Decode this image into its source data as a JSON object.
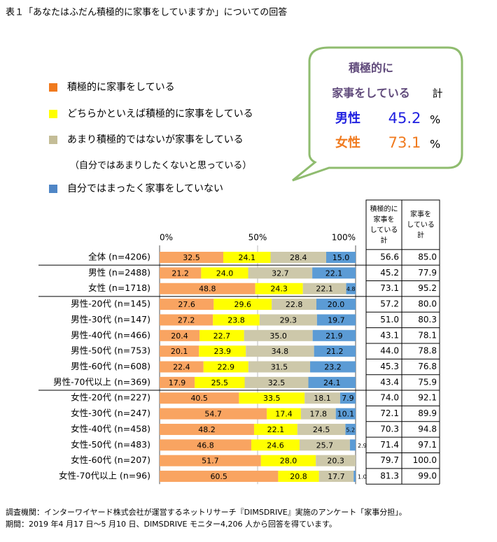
{
  "chart_data": {
    "type": "stacked-bar-horizontal",
    "title": "表１「あなたはふだん積極的に家事をしていますか」についての回答",
    "categories": [
      "全体 (n=4206)",
      "男性 (n=2488)",
      "女性 (n=1718)",
      "男性-20代 (n=145)",
      "男性-30代 (n=147)",
      "男性-40代 (n=466)",
      "男性-50代 (n=753)",
      "男性-60代 (n=608)",
      "男性-70代以上 (n=369)",
      "女性-20代 (n=227)",
      "女性-30代 (n=247)",
      "女性-40代 (n=458)",
      "女性-50代 (n=483)",
      "女性-60代 (n=207)",
      "女性-70代以上 (n=96)"
    ],
    "series": [
      {
        "name": "積極的に家事をしている",
        "color": "#f9a461",
        "legend_color": "#f07a1e",
        "values": [
          32.5,
          21.2,
          48.8,
          27.6,
          27.2,
          20.4,
          20.1,
          22.4,
          17.9,
          40.5,
          54.7,
          48.2,
          46.8,
          51.7,
          60.5
        ]
      },
      {
        "name": "どちらかといえば積極的に家事をしている",
        "color": "#ffff00",
        "legend_color": "#ffff00",
        "values": [
          24.1,
          24.0,
          24.3,
          29.6,
          23.8,
          22.7,
          23.9,
          22.9,
          25.5,
          33.5,
          17.4,
          22.1,
          24.6,
          28.0,
          20.8
        ],
        "value_labels": [
          "24.1",
          "24.0",
          "24.3",
          "29.6",
          "23.8",
          "22.7",
          "23.9",
          "22.9",
          "25.5",
          "33.5",
          "17.4",
          "22.1",
          "24.6",
          "28.0",
          "20.8"
        ]
      },
      {
        "name": "あまり積極的ではないが家事をしている",
        "color": "#cdc8aa",
        "legend_color": "#c4bd97",
        "values": [
          28.4,
          32.7,
          22.1,
          22.8,
          29.3,
          35.0,
          34.8,
          31.5,
          32.5,
          18.1,
          17.8,
          24.5,
          25.7,
          20.3,
          17.7
        ],
        "value_labels": [
          "28.4",
          "32.7",
          "22.1",
          "22.8",
          "29.3",
          "35.0",
          "34.8",
          "31.5",
          "32.5",
          "18.1",
          "17.8",
          "24.5",
          "25.7",
          "20.3",
          "17.7"
        ]
      },
      {
        "name": "自分ではまったく家事をしていない",
        "color": "#5b9bd5",
        "legend_color": "#4f86c6",
        "values": [
          15.0,
          22.1,
          4.8,
          20.0,
          19.7,
          21.9,
          21.2,
          23.2,
          24.1,
          7.9,
          10.1,
          5.2,
          2.9,
          null,
          1.0
        ],
        "value_labels": [
          "15.0",
          "22.1",
          "4.8",
          "20.0",
          "19.7",
          "21.9",
          "21.2",
          "23.2",
          "24.1",
          "7.9",
          "10.1",
          "5.2",
          "2.9",
          null,
          "1.0"
        ]
      }
    ],
    "legend_note": "（自分ではあまりしたくないと思っている）",
    "xlim": [
      0,
      100
    ],
    "xticks": [
      {
        "value": 0,
        "label": "0%"
      },
      {
        "value": 50,
        "label": "50%"
      },
      {
        "value": 100,
        "label": "100%"
      }
    ],
    "table": {
      "headers": [
        [
          "積極的に",
          "家事を",
          "している",
          "計"
        ],
        [
          "家事を",
          "している",
          "計"
        ]
      ],
      "rows": [
        [
          "56.6",
          "85.0"
        ],
        [
          "45.2",
          "77.9"
        ],
        [
          "73.1",
          "95.2"
        ],
        [
          "57.2",
          "80.0"
        ],
        [
          "51.0",
          "80.3"
        ],
        [
          "43.1",
          "78.1"
        ],
        [
          "44.0",
          "78.8"
        ],
        [
          "45.3",
          "76.8"
        ],
        [
          "43.4",
          "75.9"
        ],
        [
          "74.0",
          "92.1"
        ],
        [
          "72.1",
          "89.9"
        ],
        [
          "70.3",
          "94.8"
        ],
        [
          "71.4",
          "97.1"
        ],
        [
          "79.7",
          "100.0"
        ],
        [
          "81.3",
          "99.0"
        ]
      ]
    },
    "callout": {
      "line1": "積極的に",
      "line2": "家事をしている",
      "total": "計",
      "male": "男性",
      "male_value": "45.2",
      "female": "女性",
      "female_value": "73.1",
      "unit": "%"
    },
    "footer": [
      "調査機関：インターワイヤード株式会社が運営するネットリサーチ『DIMSDRIVE』実施のアンケート「家事分担」。",
      "期間：2019 年4 月17 日～5 月10 日、DIMSDRIVE モニター4,206 人から回答を得ています。"
    ]
  }
}
